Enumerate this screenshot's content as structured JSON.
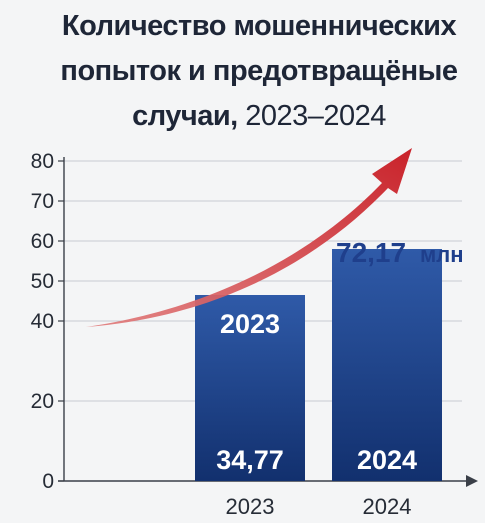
{
  "title_main": "Количество мошеннических попыток и предотвращёные случаи,",
  "title_years": "2023–2024",
  "chart_data": {
    "type": "bar",
    "categories": [
      "2023",
      "2024"
    ],
    "values": [
      46.5,
      58
    ],
    "ylim": [
      0,
      80
    ],
    "yticks": [
      "0",
      "20",
      "40",
      "50",
      "60",
      "70",
      "80"
    ],
    "ytick_values": [
      0,
      20,
      40,
      50,
      60,
      70,
      80
    ],
    "grid": true,
    "bar_labels_top": [
      "2023",
      ""
    ],
    "bar_labels_bottom": [
      "34,77",
      "2024"
    ],
    "annotation_value": "72,17",
    "annotation_unit": "млн",
    "trend_arrow": true,
    "colors": {
      "bar_top": "#2f5aa8",
      "bar_bottom": "#12306e",
      "arrow": "#c9222a",
      "annotation": "#1f3f8c"
    }
  }
}
